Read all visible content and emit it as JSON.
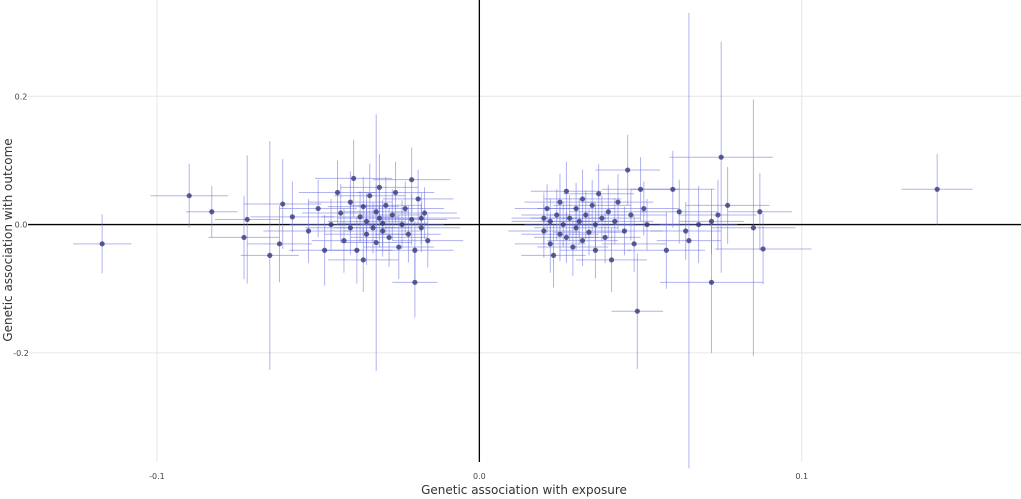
{
  "chart_data": {
    "type": "scatter",
    "xlabel": "Genetic association with exposure",
    "ylabel": "Genetic association with outcome",
    "xlim": [
      -0.14,
      0.168
    ],
    "ylim": [
      -0.37,
      0.35
    ],
    "x_ticks": [
      {
        "value": -0.1,
        "label": "-0.1"
      },
      {
        "value": 0.0,
        "label": "0.0"
      },
      {
        "value": 0.1,
        "label": "0.1"
      }
    ],
    "y_ticks": [
      {
        "value": 0.2,
        "label": "0.2"
      },
      {
        "value": 0.0,
        "label": "0.0"
      },
      {
        "value": -0.2,
        "label": "-0.2"
      }
    ],
    "grid": true,
    "zero_lines": true,
    "colors": {
      "point": "#2b2f73",
      "error_bar": "#6f74e0",
      "grid": "#e6e6e6",
      "zero_line": "#000000"
    },
    "points": [
      {
        "x": -0.117,
        "y": -0.03,
        "xerr": 0.009,
        "yerr": 0.046
      },
      {
        "x": -0.09,
        "y": 0.045,
        "xerr": 0.012,
        "yerr": 0.05
      },
      {
        "x": -0.083,
        "y": 0.02,
        "xerr": 0.008,
        "yerr": 0.04
      },
      {
        "x": -0.072,
        "y": 0.008,
        "xerr": 0.01,
        "yerr": 0.1
      },
      {
        "x": -0.073,
        "y": -0.02,
        "xerr": 0.011,
        "yerr": 0.065
      },
      {
        "x": -0.065,
        "y": -0.048,
        "xerr": 0.009,
        "yerr": 0.178
      },
      {
        "x": -0.062,
        "y": -0.03,
        "xerr": 0.01,
        "yerr": 0.06
      },
      {
        "x": -0.061,
        "y": 0.032,
        "xerr": 0.012,
        "yerr": 0.07
      },
      {
        "x": -0.058,
        "y": 0.012,
        "xerr": 0.013,
        "yerr": 0.055
      },
      {
        "x": -0.053,
        "y": -0.01,
        "xerr": 0.014,
        "yerr": 0.05
      },
      {
        "x": -0.05,
        "y": 0.025,
        "xerr": 0.012,
        "yerr": 0.045
      },
      {
        "x": -0.048,
        "y": -0.04,
        "xerr": 0.011,
        "yerr": 0.055
      },
      {
        "x": -0.046,
        "y": 0.0,
        "xerr": 0.013,
        "yerr": 0.04
      },
      {
        "x": -0.043,
        "y": 0.018,
        "xerr": 0.012,
        "yerr": 0.045
      },
      {
        "x": -0.042,
        "y": -0.025,
        "xerr": 0.01,
        "yerr": 0.05
      },
      {
        "x": -0.04,
        "y": 0.035,
        "xerr": 0.013,
        "yerr": 0.048
      },
      {
        "x": -0.04,
        "y": -0.005,
        "xerr": 0.014,
        "yerr": 0.042
      },
      {
        "x": -0.039,
        "y": 0.072,
        "xerr": 0.012,
        "yerr": 0.06
      },
      {
        "x": -0.038,
        "y": -0.04,
        "xerr": 0.011,
        "yerr": 0.052
      },
      {
        "x": -0.037,
        "y": 0.012,
        "xerr": 0.012,
        "yerr": 0.04
      },
      {
        "x": -0.036,
        "y": 0.028,
        "xerr": 0.011,
        "yerr": 0.046
      },
      {
        "x": -0.035,
        "y": -0.015,
        "xerr": 0.013,
        "yerr": 0.048
      },
      {
        "x": -0.035,
        "y": 0.005,
        "xerr": 0.012,
        "yerr": 0.044
      },
      {
        "x": -0.034,
        "y": 0.045,
        "xerr": 0.011,
        "yerr": 0.05
      },
      {
        "x": -0.033,
        "y": -0.005,
        "xerr": 0.012,
        "yerr": 0.04
      },
      {
        "x": -0.032,
        "y": 0.02,
        "xerr": 0.01,
        "yerr": 0.042
      },
      {
        "x": -0.032,
        "y": -0.028,
        "xerr": 0.011,
        "yerr": 0.2
      },
      {
        "x": -0.031,
        "y": 0.01,
        "xerr": 0.013,
        "yerr": 0.046
      },
      {
        "x": -0.031,
        "y": 0.058,
        "xerr": 0.012,
        "yerr": 0.052
      },
      {
        "x": -0.03,
        "y": -0.01,
        "xerr": 0.012,
        "yerr": 0.04
      },
      {
        "x": -0.03,
        "y": 0.002,
        "xerr": 0.014,
        "yerr": 0.036
      },
      {
        "x": -0.029,
        "y": 0.03,
        "xerr": 0.011,
        "yerr": 0.044
      },
      {
        "x": -0.028,
        "y": -0.02,
        "xerr": 0.012,
        "yerr": 0.046
      },
      {
        "x": -0.027,
        "y": 0.015,
        "xerr": 0.01,
        "yerr": 0.04
      },
      {
        "x": -0.026,
        "y": 0.05,
        "xerr": 0.012,
        "yerr": 0.048
      },
      {
        "x": -0.025,
        "y": -0.035,
        "xerr": 0.011,
        "yerr": 0.05
      },
      {
        "x": -0.024,
        "y": 0.0,
        "xerr": 0.013,
        "yerr": 0.038
      },
      {
        "x": -0.023,
        "y": 0.025,
        "xerr": 0.012,
        "yerr": 0.042
      },
      {
        "x": -0.022,
        "y": -0.015,
        "xerr": 0.01,
        "yerr": 0.044
      },
      {
        "x": -0.021,
        "y": 0.07,
        "xerr": 0.012,
        "yerr": 0.05
      },
      {
        "x": -0.021,
        "y": 0.008,
        "xerr": 0.011,
        "yerr": 0.04
      },
      {
        "x": -0.02,
        "y": -0.09,
        "xerr": 0.007,
        "yerr": 0.055
      },
      {
        "x": -0.019,
        "y": 0.04,
        "xerr": 0.011,
        "yerr": 0.045
      },
      {
        "x": -0.018,
        "y": -0.005,
        "xerr": 0.012,
        "yerr": 0.038
      },
      {
        "x": -0.017,
        "y": 0.018,
        "xerr": 0.01,
        "yerr": 0.04
      },
      {
        "x": -0.016,
        "y": -0.025,
        "xerr": 0.011,
        "yerr": 0.042
      },
      {
        "x": -0.02,
        "y": -0.04,
        "xerr": 0.012,
        "yerr": 0.046
      },
      {
        "x": -0.018,
        "y": 0.01,
        "xerr": 0.012,
        "yerr": 0.04
      },
      {
        "x": -0.036,
        "y": -0.055,
        "xerr": 0.011,
        "yerr": 0.05
      },
      {
        "x": -0.044,
        "y": 0.05,
        "xerr": 0.012,
        "yerr": 0.05
      },
      {
        "x": 0.02,
        "y": 0.01,
        "xerr": 0.01,
        "yerr": 0.04
      },
      {
        "x": 0.02,
        "y": -0.01,
        "xerr": 0.011,
        "yerr": 0.042
      },
      {
        "x": 0.021,
        "y": 0.025,
        "xerr": 0.01,
        "yerr": 0.038
      },
      {
        "x": 0.022,
        "y": -0.03,
        "xerr": 0.011,
        "yerr": 0.045
      },
      {
        "x": 0.022,
        "y": 0.005,
        "xerr": 0.012,
        "yerr": 0.036
      },
      {
        "x": 0.023,
        "y": -0.048,
        "xerr": 0.01,
        "yerr": 0.05
      },
      {
        "x": 0.024,
        "y": 0.015,
        "xerr": 0.011,
        "yerr": 0.04
      },
      {
        "x": 0.025,
        "y": -0.015,
        "xerr": 0.012,
        "yerr": 0.042
      },
      {
        "x": 0.025,
        "y": 0.035,
        "xerr": 0.011,
        "yerr": 0.044
      },
      {
        "x": 0.026,
        "y": 0.0,
        "xerr": 0.012,
        "yerr": 0.035
      },
      {
        "x": 0.027,
        "y": -0.02,
        "xerr": 0.01,
        "yerr": 0.04
      },
      {
        "x": 0.027,
        "y": 0.052,
        "xerr": 0.011,
        "yerr": 0.046
      },
      {
        "x": 0.028,
        "y": 0.01,
        "xerr": 0.012,
        "yerr": 0.036
      },
      {
        "x": 0.029,
        "y": -0.035,
        "xerr": 0.011,
        "yerr": 0.045
      },
      {
        "x": 0.03,
        "y": 0.025,
        "xerr": 0.012,
        "yerr": 0.04
      },
      {
        "x": 0.03,
        "y": -0.005,
        "xerr": 0.013,
        "yerr": 0.034
      },
      {
        "x": 0.031,
        "y": 0.005,
        "xerr": 0.012,
        "yerr": 0.036
      },
      {
        "x": 0.032,
        "y": -0.025,
        "xerr": 0.011,
        "yerr": 0.04
      },
      {
        "x": 0.032,
        "y": 0.04,
        "xerr": 0.012,
        "yerr": 0.046
      },
      {
        "x": 0.033,
        "y": 0.015,
        "xerr": 0.012,
        "yerr": 0.038
      },
      {
        "x": 0.034,
        "y": -0.012,
        "xerr": 0.011,
        "yerr": 0.036
      },
      {
        "x": 0.035,
        "y": 0.03,
        "xerr": 0.012,
        "yerr": 0.04
      },
      {
        "x": 0.036,
        "y": -0.04,
        "xerr": 0.011,
        "yerr": 0.044
      },
      {
        "x": 0.036,
        "y": 0.0,
        "xerr": 0.012,
        "yerr": 0.034
      },
      {
        "x": 0.037,
        "y": 0.048,
        "xerr": 0.011,
        "yerr": 0.046
      },
      {
        "x": 0.038,
        "y": 0.01,
        "xerr": 0.012,
        "yerr": 0.036
      },
      {
        "x": 0.039,
        "y": -0.02,
        "xerr": 0.011,
        "yerr": 0.04
      },
      {
        "x": 0.04,
        "y": 0.02,
        "xerr": 0.012,
        "yerr": 0.042
      },
      {
        "x": 0.041,
        "y": -0.055,
        "xerr": 0.011,
        "yerr": 0.05
      },
      {
        "x": 0.042,
        "y": 0.005,
        "xerr": 0.012,
        "yerr": 0.036
      },
      {
        "x": 0.043,
        "y": 0.035,
        "xerr": 0.011,
        "yerr": 0.044
      },
      {
        "x": 0.045,
        "y": -0.01,
        "xerr": 0.012,
        "yerr": 0.038
      },
      {
        "x": 0.046,
        "y": 0.085,
        "xerr": 0.01,
        "yerr": 0.055
      },
      {
        "x": 0.047,
        "y": 0.015,
        "xerr": 0.011,
        "yerr": 0.04
      },
      {
        "x": 0.048,
        "y": -0.03,
        "xerr": 0.01,
        "yerr": 0.044
      },
      {
        "x": 0.049,
        "y": -0.135,
        "xerr": 0.008,
        "yerr": 0.09
      },
      {
        "x": 0.05,
        "y": 0.055,
        "xerr": 0.012,
        "yerr": 0.05
      },
      {
        "x": 0.051,
        "y": 0.025,
        "xerr": 0.011,
        "yerr": 0.042
      },
      {
        "x": 0.052,
        "y": 0.0,
        "xerr": 0.01,
        "yerr": 0.04
      },
      {
        "x": 0.058,
        "y": -0.04,
        "xerr": 0.012,
        "yerr": 0.06
      },
      {
        "x": 0.06,
        "y": 0.055,
        "xerr": 0.013,
        "yerr": 0.06
      },
      {
        "x": 0.062,
        "y": 0.02,
        "xerr": 0.012,
        "yerr": 0.05
      },
      {
        "x": 0.064,
        "y": -0.01,
        "xerr": 0.011,
        "yerr": 0.045
      },
      {
        "x": 0.065,
        "y": -0.025,
        "xerr": 0.01,
        "yerr": 0.355
      },
      {
        "x": 0.068,
        "y": 0.0,
        "xerr": 0.012,
        "yerr": 0.06
      },
      {
        "x": 0.072,
        "y": 0.005,
        "xerr": 0.01,
        "yerr": 0.05
      },
      {
        "x": 0.072,
        "y": -0.09,
        "xerr": 0.016,
        "yerr": 0.11
      },
      {
        "x": 0.074,
        "y": 0.015,
        "xerr": 0.012,
        "yerr": 0.055
      },
      {
        "x": 0.075,
        "y": 0.105,
        "xerr": 0.016,
        "yerr": 0.18
      },
      {
        "x": 0.077,
        "y": 0.03,
        "xerr": 0.013,
        "yerr": 0.06
      },
      {
        "x": 0.085,
        "y": -0.005,
        "xerr": 0.013,
        "yerr": 0.2
      },
      {
        "x": 0.087,
        "y": 0.02,
        "xerr": 0.01,
        "yerr": 0.06
      },
      {
        "x": 0.088,
        "y": -0.038,
        "xerr": 0.015,
        "yerr": 0.055
      },
      {
        "x": 0.142,
        "y": 0.055,
        "xerr": 0.011,
        "yerr": 0.055
      }
    ]
  }
}
